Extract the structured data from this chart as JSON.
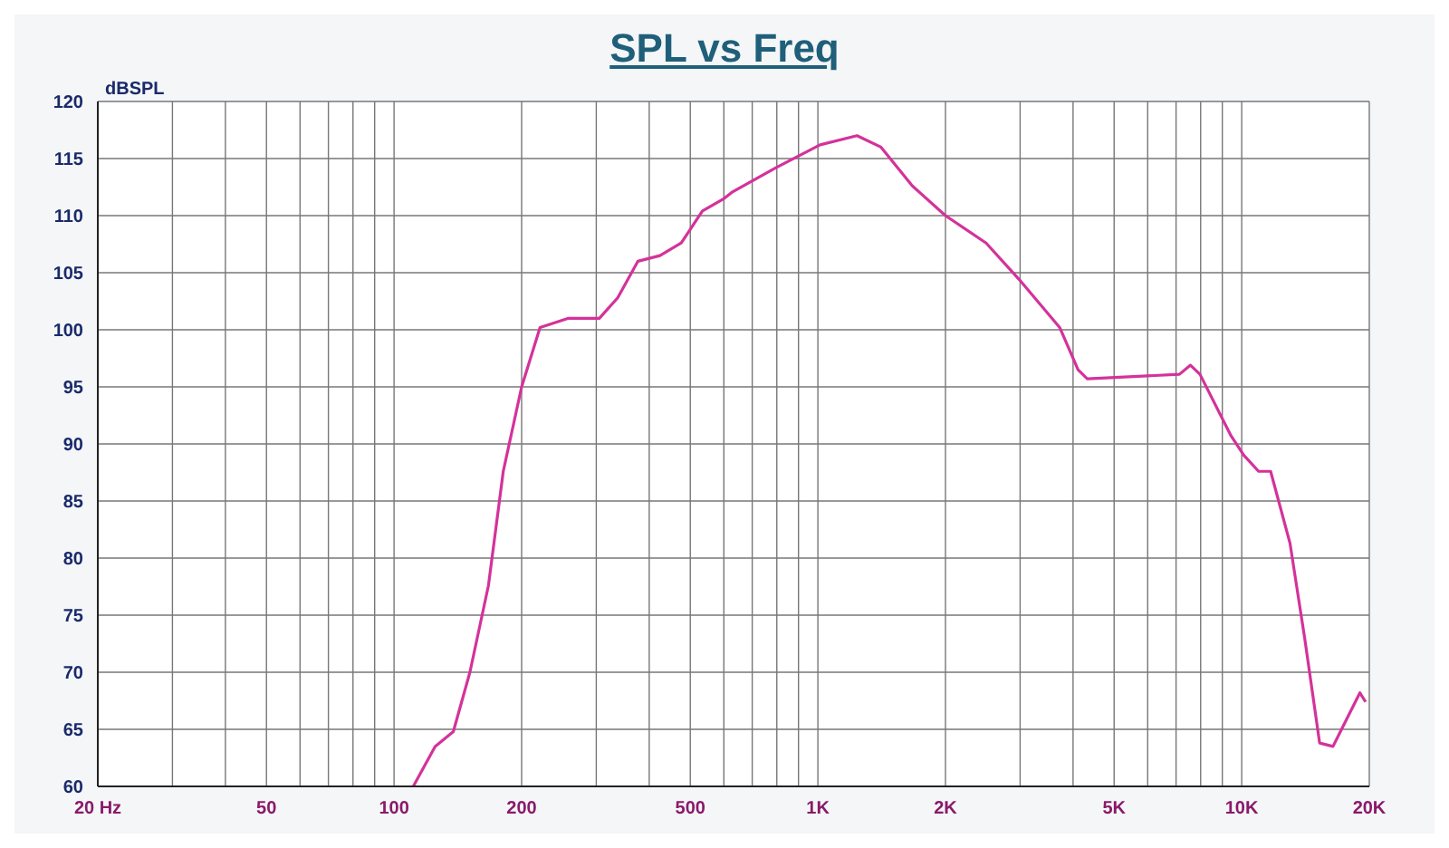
{
  "chart_data": {
    "type": "line",
    "title": "SPL vs Freq",
    "ylabel": "dBSPL",
    "log": "x",
    "grid": true,
    "marker": "none",
    "line_style": "solid",
    "x": [
      111,
      125,
      138,
      151,
      167,
      181,
      200,
      221,
      257,
      305,
      337,
      376,
      424,
      476,
      534,
      601,
      630,
      796,
      1012,
      1237,
      1409,
      1671,
      2000,
      2494,
      2986,
      3720,
      4110,
      4320,
      7130,
      7570,
      7970,
      9440,
      10120,
      10960,
      11700,
      13000,
      14090,
      15270,
      16420,
      17200,
      19000,
      19600
    ],
    "series": [
      {
        "color": "#d4329a",
        "values": [
          60,
          63.5,
          64.8,
          70,
          77.6,
          87.6,
          95,
          100.2,
          101,
          101,
          102.8,
          106,
          106.5,
          107.6,
          110.4,
          111.5,
          112.1,
          114.2,
          116.2,
          117,
          116,
          112.6,
          110,
          107.6,
          104.4,
          100.2,
          96.5,
          95.7,
          96.1,
          96.9,
          96.1,
          90.7,
          89,
          87.6,
          87.6,
          81.3,
          72.9,
          63.8,
          63.5,
          65,
          68.2,
          67.4
        ]
      }
    ],
    "xlim": [
      20,
      20000
    ],
    "xticks": [
      {
        "value": 20,
        "label": "20  Hz"
      },
      {
        "value": 30,
        "label": null
      },
      {
        "value": 40,
        "label": null
      },
      50,
      {
        "value": 60,
        "label": null
      },
      {
        "value": 70,
        "label": null
      },
      {
        "value": 80,
        "label": null
      },
      {
        "value": 90,
        "label": null
      },
      100,
      200,
      {
        "value": 300,
        "label": null
      },
      {
        "value": 400,
        "label": null
      },
      500,
      {
        "value": 600,
        "label": null
      },
      {
        "value": 700,
        "label": null
      },
      {
        "value": 800,
        "label": null
      },
      {
        "value": 900,
        "label": null
      },
      {
        "value": 1000,
        "label": "1K"
      },
      {
        "value": 2000,
        "label": "2K"
      },
      {
        "value": 3000,
        "label": null
      },
      {
        "value": 4000,
        "label": null
      },
      {
        "value": 5000,
        "label": "5K"
      },
      {
        "value": 6000,
        "label": null
      },
      {
        "value": 7000,
        "label": null
      },
      {
        "value": 8000,
        "label": null
      },
      {
        "value": 9000,
        "label": null
      },
      {
        "value": 10000,
        "label": "10K"
      },
      {
        "value": 20000,
        "label": "20K"
      }
    ],
    "ylim": [
      60,
      120
    ],
    "yticks": [
      60,
      65,
      70,
      75,
      80,
      85,
      90,
      95,
      100,
      105,
      110,
      115,
      120
    ]
  }
}
